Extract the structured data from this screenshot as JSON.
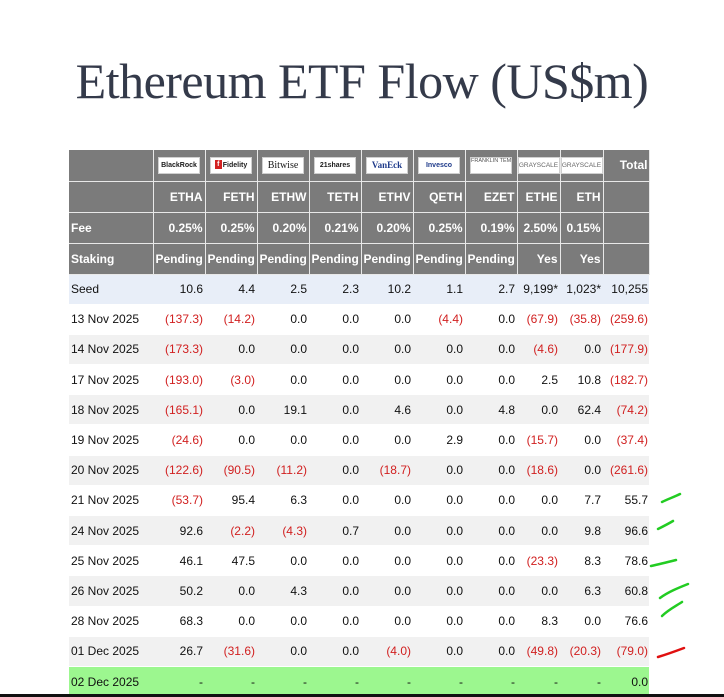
{
  "title": "Ethereum ETF Flow (US$m)",
  "logos": [
    {
      "name": "blackrock-logo",
      "text": "BlackRock",
      "cls": ""
    },
    {
      "name": "fidelity-logo",
      "text": "Fidelity",
      "cls": "fidelity"
    },
    {
      "name": "bitwise-logo",
      "text": "Bitwise",
      "cls": "bitwise"
    },
    {
      "name": "21shares-logo",
      "text": "21shares",
      "cls": ""
    },
    {
      "name": "vaneck-logo",
      "text": "VanEck",
      "cls": "vaneck"
    },
    {
      "name": "invesco-logo",
      "text": "Invesco",
      "cls": "invesco"
    },
    {
      "name": "franklin-templeton-logo",
      "text": "FRANKLIN TEMPLETON",
      "cls": "franklin"
    },
    {
      "name": "grayscale-logo-ethe",
      "text": "GRAYSCALE",
      "cls": "gray"
    },
    {
      "name": "grayscale-logo-eth",
      "text": "GRAYSCALE",
      "cls": "gray"
    }
  ],
  "total_label": "Total",
  "tickers": [
    "ETHA",
    "FETH",
    "ETHW",
    "TETH",
    "ETHV",
    "QETH",
    "EZET",
    "ETHE",
    "ETH"
  ],
  "fee_label": "Fee",
  "fees": [
    "0.25%",
    "0.25%",
    "0.20%",
    "0.21%",
    "0.20%",
    "0.25%",
    "0.19%",
    "2.50%",
    "0.15%"
  ],
  "staking_label": "Staking",
  "staking": [
    "Pending",
    "Pending",
    "Pending",
    "Pending",
    "Pending",
    "Pending",
    "Pending",
    "Yes",
    "Yes"
  ],
  "rows": [
    {
      "label": "Seed",
      "values": [
        "10.6",
        "4.4",
        "2.5",
        "2.3",
        "10.2",
        "1.1",
        "2.7",
        "9,199*",
        "1,023*",
        "10,255"
      ]
    },
    {
      "label": "13 Nov 2025",
      "values": [
        "(137.3)",
        "(14.2)",
        "0.0",
        "0.0",
        "0.0",
        "(4.4)",
        "0.0",
        "(67.9)",
        "(35.8)",
        "(259.6)"
      ]
    },
    {
      "label": "14 Nov 2025",
      "values": [
        "(173.3)",
        "0.0",
        "0.0",
        "0.0",
        "0.0",
        "0.0",
        "0.0",
        "(4.6)",
        "0.0",
        "(177.9)"
      ]
    },
    {
      "label": "17 Nov 2025",
      "values": [
        "(193.0)",
        "(3.0)",
        "0.0",
        "0.0",
        "0.0",
        "0.0",
        "0.0",
        "2.5",
        "10.8",
        "(182.7)"
      ]
    },
    {
      "label": "18 Nov 2025",
      "values": [
        "(165.1)",
        "0.0",
        "19.1",
        "0.0",
        "4.6",
        "0.0",
        "4.8",
        "0.0",
        "62.4",
        "(74.2)"
      ]
    },
    {
      "label": "19 Nov 2025",
      "values": [
        "(24.6)",
        "0.0",
        "0.0",
        "0.0",
        "0.0",
        "2.9",
        "0.0",
        "(15.7)",
        "0.0",
        "(37.4)"
      ]
    },
    {
      "label": "20 Nov 2025",
      "values": [
        "(122.6)",
        "(90.5)",
        "(11.2)",
        "0.0",
        "(18.7)",
        "0.0",
        "0.0",
        "(18.6)",
        "0.0",
        "(261.6)"
      ]
    },
    {
      "label": "21 Nov 2025",
      "values": [
        "(53.7)",
        "95.4",
        "6.3",
        "0.0",
        "0.0",
        "0.0",
        "0.0",
        "0.0",
        "7.7",
        "55.7"
      ]
    },
    {
      "label": "24 Nov 2025",
      "values": [
        "92.6",
        "(2.2)",
        "(4.3)",
        "0.7",
        "0.0",
        "0.0",
        "0.0",
        "0.0",
        "9.8",
        "96.6"
      ]
    },
    {
      "label": "25 Nov 2025",
      "values": [
        "46.1",
        "47.5",
        "0.0",
        "0.0",
        "0.0",
        "0.0",
        "0.0",
        "(23.3)",
        "8.3",
        "78.6"
      ]
    },
    {
      "label": "26 Nov 2025",
      "values": [
        "50.2",
        "0.0",
        "4.3",
        "0.0",
        "0.0",
        "0.0",
        "0.0",
        "0.0",
        "6.3",
        "60.8"
      ]
    },
    {
      "label": "28 Nov 2025",
      "values": [
        "68.3",
        "0.0",
        "0.0",
        "0.0",
        "0.0",
        "0.0",
        "0.0",
        "8.3",
        "0.0",
        "76.6"
      ]
    },
    {
      "label": "01 Dec 2025",
      "values": [
        "26.7",
        "(31.6)",
        "0.0",
        "0.0",
        "(4.0)",
        "0.0",
        "0.0",
        "(49.8)",
        "(20.3)",
        "(79.0)"
      ]
    },
    {
      "label": "02 Dec 2025",
      "values": [
        "-",
        "-",
        "-",
        "-",
        "-",
        "-",
        "-",
        "-",
        "-",
        "0.0"
      ]
    }
  ],
  "colors": {
    "header_bg": "#7b7b7b",
    "negative": "#d12020",
    "highlight_row": "#9cf78f",
    "seed_row": "#e8eef8",
    "check_marks": "#22cc22",
    "red_mark": "#e01010"
  }
}
